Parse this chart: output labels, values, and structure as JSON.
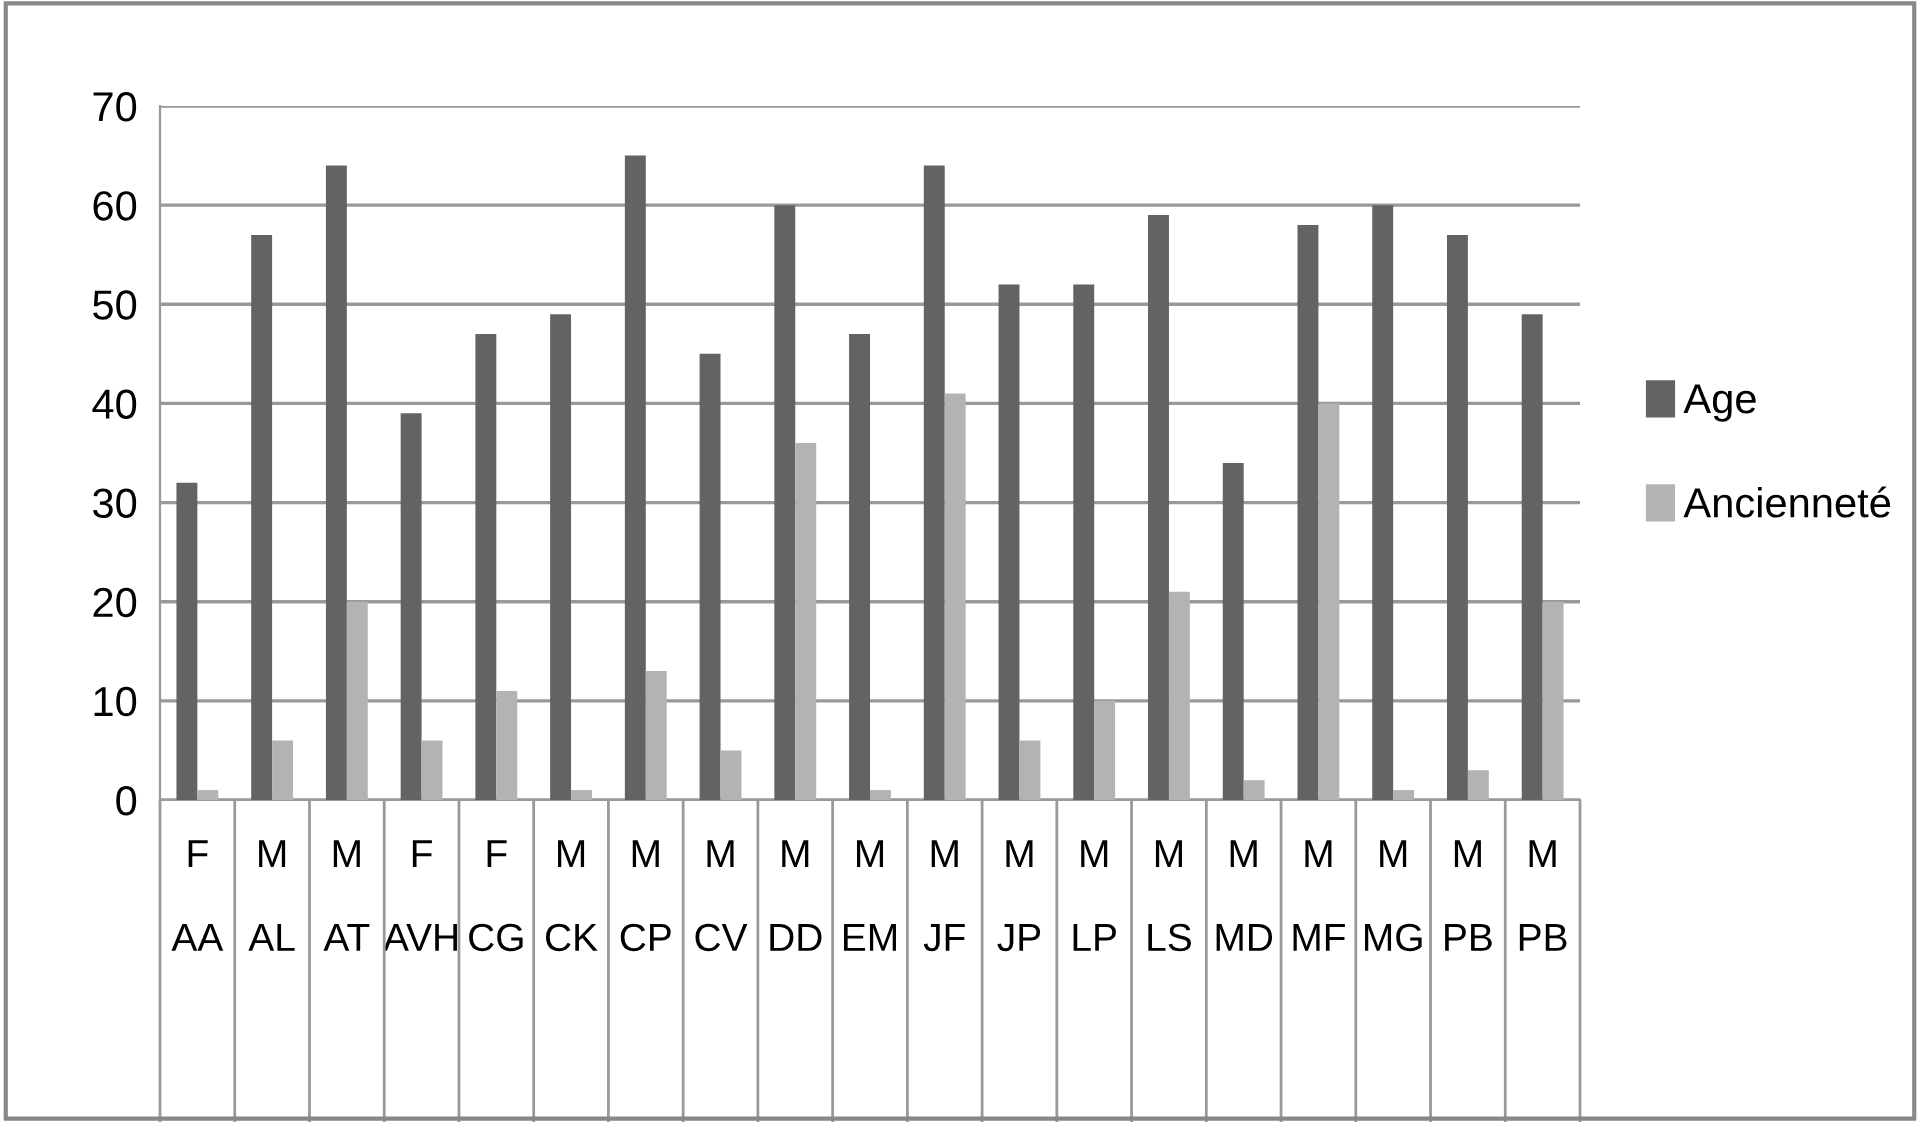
{
  "chart_data": {
    "type": "bar",
    "categories": [
      "F\n\nAA",
      "M\n\nAL",
      "M\n\nAT",
      "F\n\nAVH",
      "F\n\nCG",
      "M\n\nCK",
      "M\n\nCP",
      "M\n\nCV",
      "M\n\nDD",
      "M\n\nEM",
      "M\n\nJF",
      "M\n\nJP",
      "M\n\nLP",
      "M\n\nLS",
      "M\n\nMD",
      "M\n\nMF",
      "M\n\nMG",
      "M\n\nPB",
      "M\n\nPB"
    ],
    "series": [
      {
        "name": "Age",
        "color": "#636363",
        "values": [
          32,
          57,
          64,
          39,
          47,
          49,
          65,
          45,
          60,
          47,
          64,
          52,
          52,
          59,
          34,
          58,
          60,
          57,
          49
        ]
      },
      {
        "name": "Ancienneté",
        "color": "#b3b3b3",
        "values": [
          1,
          6,
          20,
          6,
          11,
          1,
          13,
          5,
          36,
          1,
          41,
          6,
          10,
          21,
          2,
          40,
          1,
          3,
          20
        ]
      }
    ],
    "ylim": [
      0,
      70
    ],
    "yticks": [
      0,
      10,
      20,
      30,
      40,
      50,
      60,
      70
    ],
    "grid": "y",
    "legend": "right"
  }
}
